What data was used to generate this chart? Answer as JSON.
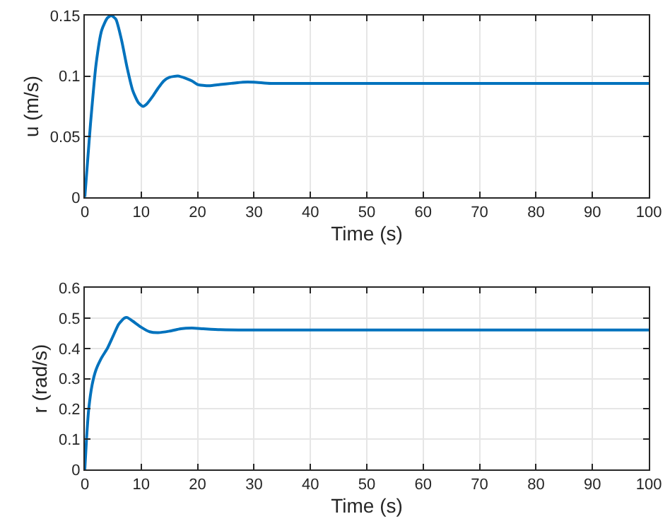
{
  "chart_data": [
    {
      "type": "line",
      "xlabel": "Time (s)",
      "ylabel": "u (m/s)",
      "xlim": [
        0,
        100
      ],
      "ylim": [
        0,
        0.15
      ],
      "xticks": [
        0,
        10,
        20,
        30,
        40,
        50,
        60,
        70,
        80,
        90,
        100
      ],
      "yticks": [
        0,
        0.05,
        0.1,
        0.15
      ],
      "grid": true,
      "line_style": "solid",
      "x": [
        0,
        0.5,
        1,
        2,
        3,
        4,
        4.7,
        5.5,
        6.5,
        7.5,
        8.5,
        9.5,
        10.3,
        11,
        12,
        13,
        14,
        15,
        16.5,
        18,
        19,
        20,
        22,
        24,
        26,
        28,
        30,
        33,
        40,
        100
      ],
      "series": [
        {
          "color": "#0072bd",
          "values": [
            0,
            0.03,
            0.06,
            0.11,
            0.138,
            0.148,
            0.15,
            0.147,
            0.13,
            0.107,
            0.088,
            0.078,
            0.075,
            0.077,
            0.083,
            0.09,
            0.096,
            0.099,
            0.1,
            0.098,
            0.096,
            0.093,
            0.092,
            0.093,
            0.094,
            0.095,
            0.095,
            0.094,
            0.094,
            0.094
          ]
        }
      ]
    },
    {
      "type": "line",
      "xlabel": "Time (s)",
      "ylabel": "r (rad/s)",
      "xlim": [
        0,
        100
      ],
      "ylim": [
        0,
        0.6
      ],
      "xticks": [
        0,
        10,
        20,
        30,
        40,
        50,
        60,
        70,
        80,
        90,
        100
      ],
      "yticks": [
        0,
        0.1,
        0.2,
        0.3,
        0.4,
        0.5,
        0.6
      ],
      "grid": true,
      "line_style": "solid",
      "x": [
        0,
        0.3,
        0.7,
        1.3,
        2,
        3,
        4,
        5,
        6,
        7,
        7.5,
        8.5,
        10,
        11.5,
        13,
        15,
        17,
        19,
        21,
        24,
        28,
        100
      ],
      "series": [
        {
          "color": "#0072bd",
          "values": [
            0,
            0.1,
            0.2,
            0.28,
            0.33,
            0.37,
            0.4,
            0.44,
            0.48,
            0.5,
            0.502,
            0.49,
            0.47,
            0.455,
            0.452,
            0.457,
            0.465,
            0.467,
            0.465,
            0.462,
            0.461,
            0.461
          ]
        }
      ]
    }
  ]
}
